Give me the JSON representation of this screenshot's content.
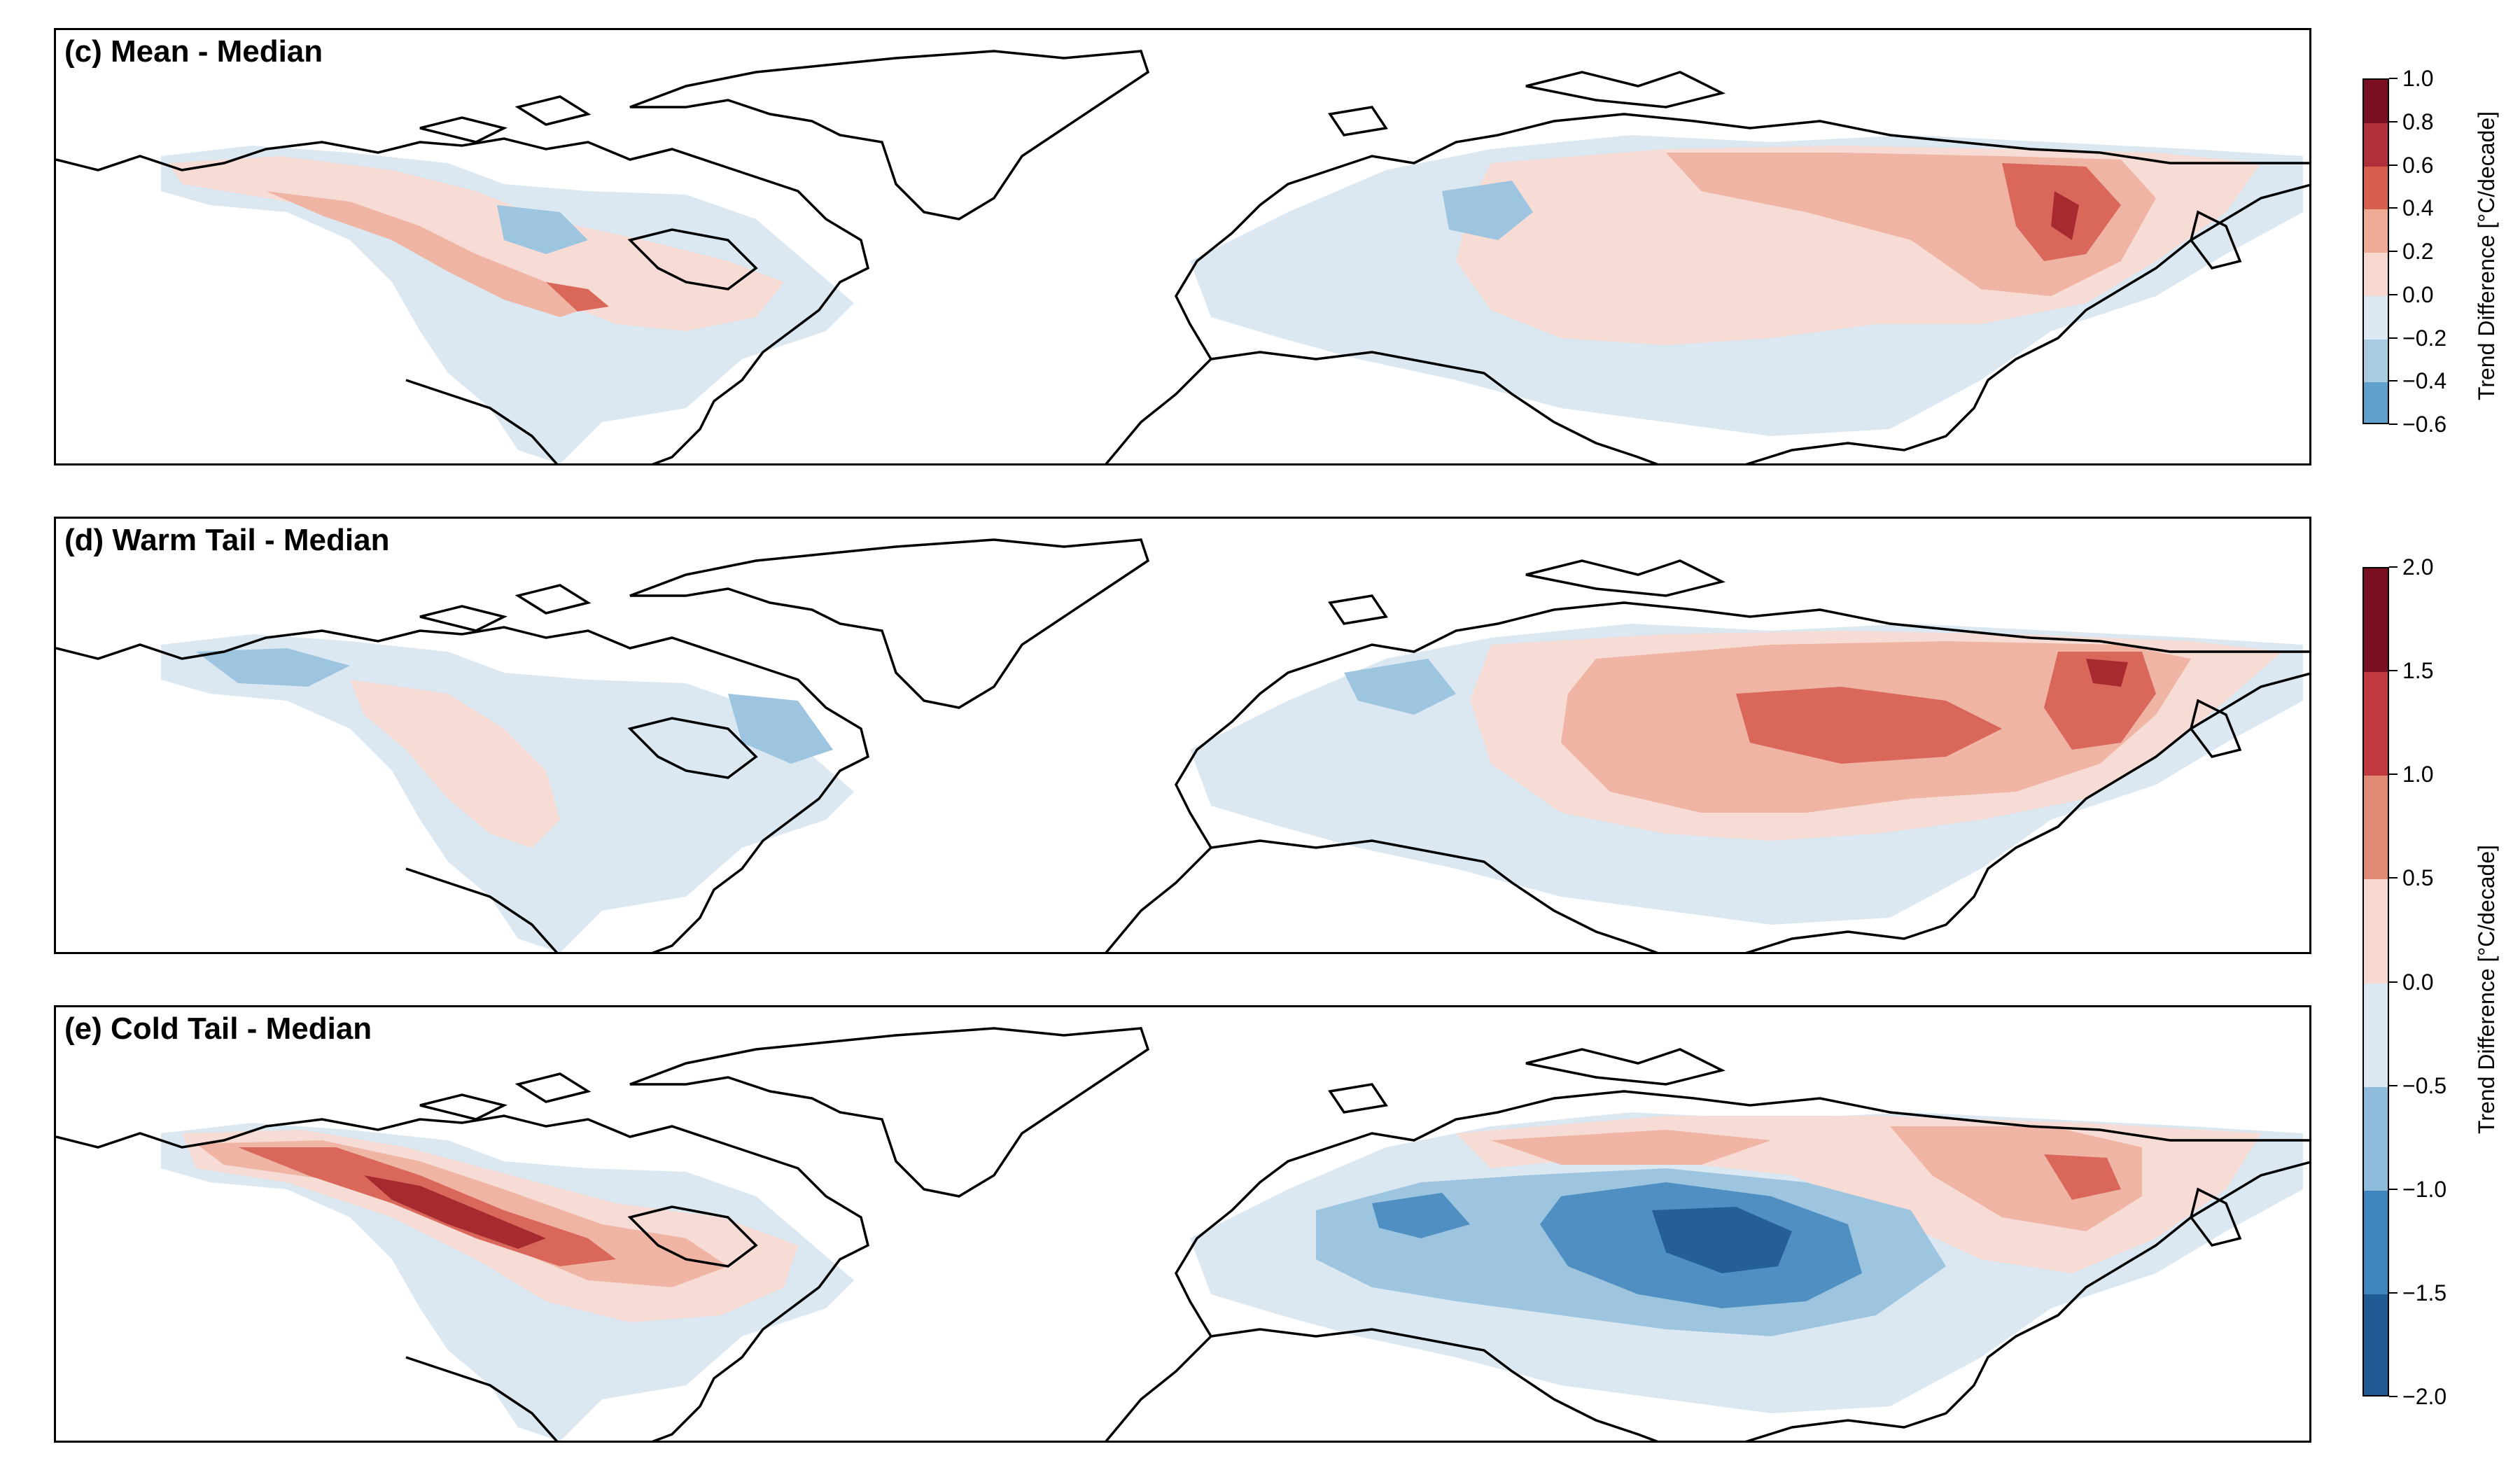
{
  "panels": [
    {
      "id": "c",
      "title": "(c) Mean - Median"
    },
    {
      "id": "d",
      "title": "(d) Warm Tail - Median"
    },
    {
      "id": "e",
      "title": "(e) Cold Tail - Median"
    }
  ],
  "colorbars": [
    {
      "label": "Trend Difference [°C/decade]",
      "ticks": [
        "1.0",
        "0.8",
        "0.6",
        "0.4",
        "0.2",
        "0.0",
        "−0.2",
        "−0.4",
        "−0.6"
      ],
      "colors": [
        "#7b0f22",
        "#b0303a",
        "#d6604d",
        "#eeaa94",
        "#f6d8d0",
        "#dce9f2",
        "#a8cbe2",
        "#5fa0cc"
      ]
    },
    {
      "label": "Trend Difference [°C/decade]",
      "ticks": [
        "2.0",
        "1.5",
        "1.0",
        "0.5",
        "0.0",
        "−0.5",
        "−1.0",
        "−1.5",
        "−2.0"
      ],
      "colors": [
        "#7b0f22",
        "#c0393f",
        "#e08a76",
        "#f6d8d0",
        "#dce9f2",
        "#8fbcdb",
        "#3f85bd",
        "#1f5a94"
      ]
    }
  ],
  "palette": {
    "warm_dark": "#a62a30",
    "warm_mid": "#d9685b",
    "warm_light": "#efb4a4",
    "warm_pale": "#f7dcd5",
    "cool_pale": "#dbe8f1",
    "cool_light": "#9dc5e0",
    "cool_mid": "#4f8fc2",
    "cool_dark": "#245f99"
  }
}
